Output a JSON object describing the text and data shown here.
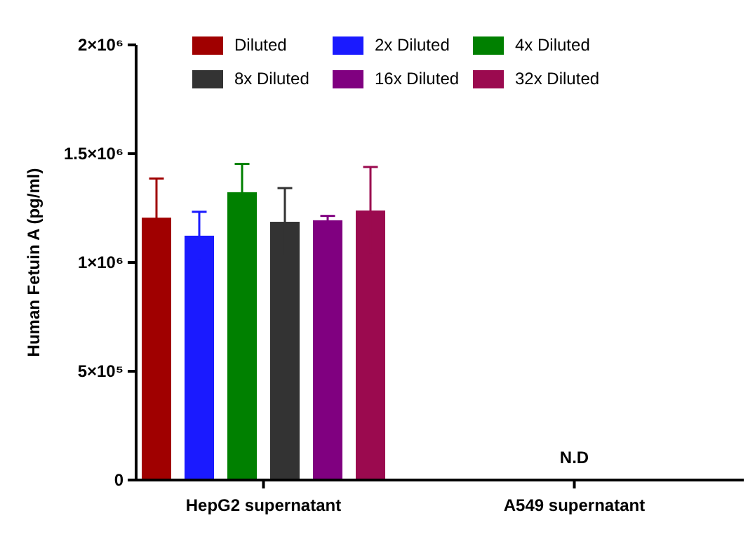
{
  "chart_data": {
    "type": "bar",
    "ylabel": "Human Fetuin A (pg/ml)",
    "categories": [
      "HepG2 supernatant",
      "A549 supernatant"
    ],
    "series": [
      {
        "name": "Diluted",
        "color": "#a00000",
        "values": [
          1206000,
          null
        ],
        "errors": [
          180000,
          null
        ]
      },
      {
        "name": "2x Diluted",
        "color": "#1a1aff",
        "values": [
          1123000,
          null
        ],
        "errors": [
          110000,
          null
        ]
      },
      {
        "name": "4x Diluted",
        "color": "#008000",
        "values": [
          1323000,
          null
        ],
        "errors": [
          130000,
          null
        ]
      },
      {
        "name": "8x Diluted",
        "color": "#333333",
        "values": [
          1187000,
          null
        ],
        "errors": [
          155000,
          null
        ]
      },
      {
        "name": "16x Diluted",
        "color": "#800080",
        "values": [
          1194000,
          null
        ],
        "errors": [
          20000,
          null
        ]
      },
      {
        "name": "32x Diluted",
        "color": "#9b0a4f",
        "values": [
          1239000,
          null
        ],
        "errors": [
          200000,
          null
        ]
      }
    ],
    "ylim": [
      0,
      2000000
    ],
    "yticks": [
      0,
      {
        "value": 500000,
        "label": "5×10⁵"
      },
      {
        "value": 1000000,
        "label": "1×10⁶"
      },
      {
        "value": 1500000,
        "label": "1.5×10⁶"
      },
      {
        "value": 2000000,
        "label": "2×10⁶"
      }
    ],
    "annotations": [
      "N.D"
    ],
    "legend": "top",
    "grid": false
  }
}
